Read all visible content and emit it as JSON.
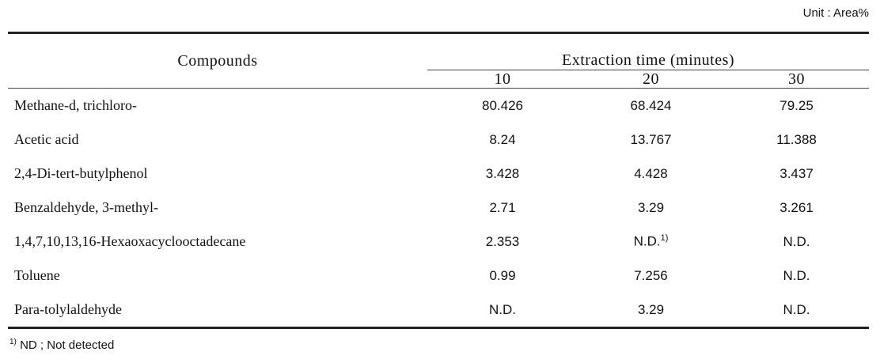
{
  "unit": "Unit : Area%",
  "table": {
    "header": {
      "compounds": "Compounds",
      "group": "Extraction time (minutes)",
      "columns": [
        "10",
        "20",
        "30"
      ]
    },
    "rows": [
      [
        "Methane-d, trichloro-",
        "80.426",
        "68.424",
        "79.25"
      ],
      [
        "Acetic acid",
        "8.24",
        "13.767",
        "11.388"
      ],
      [
        "2,4-Di-tert-butylphenol",
        "3.428",
        "4.428",
        "3.437"
      ],
      [
        "Benzaldehyde, 3-methyl-",
        "2.71",
        "3.29",
        "3.261"
      ],
      [
        "1,4,7,10,13,16-Hexaoxacyclooctadecane",
        "2.353",
        {
          "text": "N.D.",
          "sup": "1)"
        },
        "N.D."
      ],
      [
        "Toluene",
        "0.99",
        "7.256",
        "N.D."
      ],
      [
        "Para-tolylaldehyde",
        "N.D.",
        "3.29",
        "N.D."
      ]
    ]
  },
  "footnote": {
    "mark": "1)",
    "text": "ND ; Not detected"
  }
}
